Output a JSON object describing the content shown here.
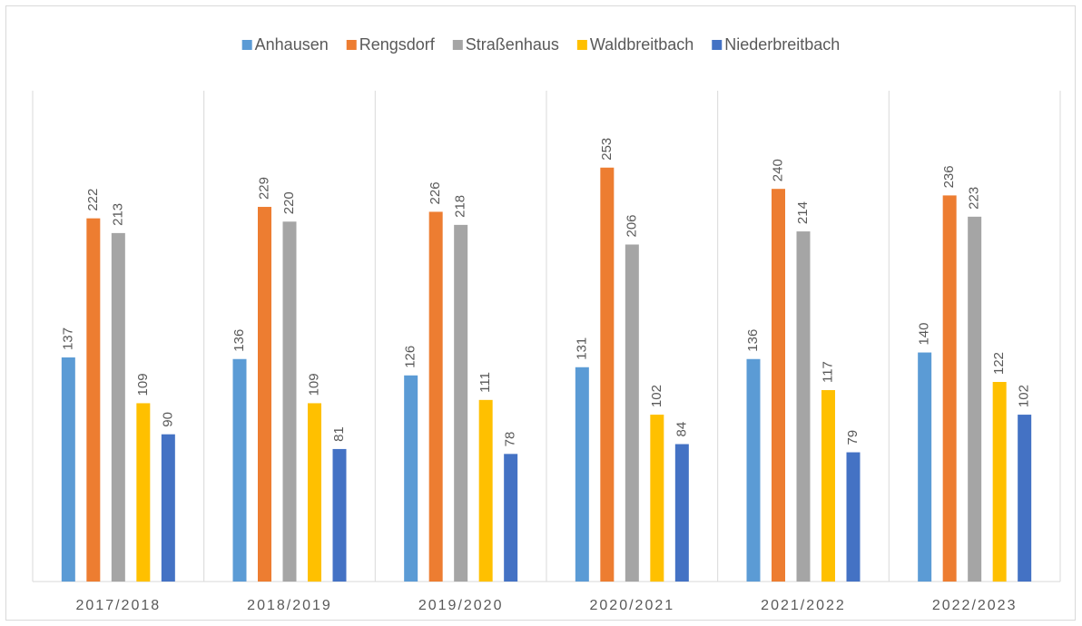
{
  "chart_data": {
    "type": "bar",
    "categories": [
      "2017/2018",
      "2018/2019",
      "2019/2020",
      "2020/2021",
      "2021/2022",
      "2022/2023"
    ],
    "series": [
      {
        "name": "Anhausen",
        "color": "#5b9bd5",
        "values": [
          137,
          136,
          126,
          131,
          136,
          140
        ]
      },
      {
        "name": "Rengsdorf",
        "color": "#ed7d31",
        "values": [
          222,
          229,
          226,
          253,
          240,
          236
        ]
      },
      {
        "name": "Straßenhaus",
        "color": "#a5a5a5",
        "values": [
          213,
          220,
          218,
          206,
          214,
          223
        ]
      },
      {
        "name": "Waldbreitbach",
        "color": "#ffc000",
        "values": [
          109,
          109,
          111,
          102,
          117,
          122
        ]
      },
      {
        "name": "Niederbreitbach",
        "color": "#4472c4",
        "values": [
          90,
          81,
          78,
          84,
          79,
          102
        ]
      }
    ],
    "ylim": [
      0,
      300
    ],
    "legend": "top"
  }
}
